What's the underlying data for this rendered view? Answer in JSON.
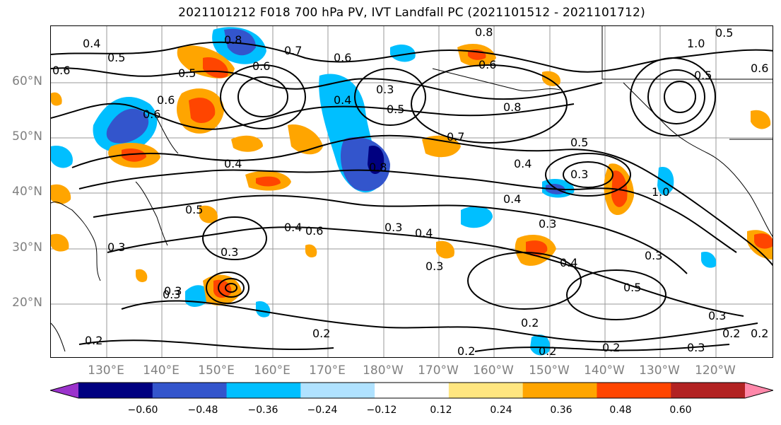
{
  "title": "2021101212 F018 700 hPa PV, IVT Landfall PC (2021101512 - 2021101712)",
  "lat_labels": [
    "60°N",
    "50°N",
    "40°N",
    "30°N",
    "20°N"
  ],
  "lon_labels": [
    "130°E",
    "140°E",
    "150°E",
    "160°E",
    "170°E",
    "180°W",
    "170°W",
    "160°W",
    "150°W",
    "140°W",
    "130°W",
    "120°W"
  ],
  "contour_labels": [
    "0.8",
    "0.5",
    "0.6",
    "0.4",
    "0.4",
    "0.6",
    "0.6",
    "0.7",
    "0.8",
    "0.6",
    "0.5",
    "0.8",
    "1.0",
    "0.5",
    "0.6",
    "0.5",
    "0.5",
    "0.6",
    "0.4",
    "0.7",
    "0.8",
    "0.5",
    "0.4",
    "0.3",
    "1.0",
    "0.4",
    "0.3",
    "0.4",
    "0.6",
    "0.3",
    "0.3",
    "0.5",
    "0.3",
    "0.3",
    "0.4",
    "0.3",
    "0.4",
    "0.3",
    "0.2",
    "0.3",
    "0.2",
    "0.2",
    "0.2",
    "0.2",
    "0.2",
    "0.3",
    "0.5",
    "0.3",
    "0.2",
    "0.2",
    "0.3",
    "0.6"
  ],
  "colorbar": {
    "ticks": [
      "−0.60",
      "−0.48",
      "−0.36",
      "−0.24",
      "−0.12",
      "0.12",
      "0.24",
      "0.36",
      "0.48",
      "0.60"
    ],
    "colors": [
      "#9b33cc",
      "#000080",
      "#3355cc",
      "#00bfff",
      "#b0e2ff",
      "#ffffff",
      "#ffe680",
      "#ffa500",
      "#ff4500",
      "#b22222",
      "#ff88aa"
    ]
  }
}
